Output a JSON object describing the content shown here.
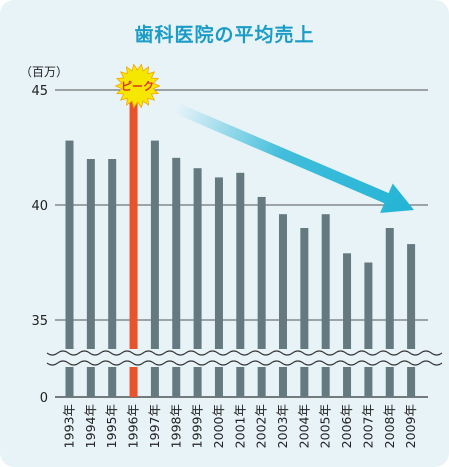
{
  "title": "歯科医院の平均売上",
  "chart_data": {
    "type": "bar",
    "title": "歯科医院の平均売上",
    "unit_label": "（百万）",
    "categories": [
      "1993年",
      "1994年",
      "1995年",
      "1996年",
      "1997年",
      "1998年",
      "1999年",
      "2000年",
      "2001年",
      "2002年",
      "2003年",
      "2004年",
      "2005年",
      "2006年",
      "2007年",
      "2008年",
      "2009年"
    ],
    "values": [
      42.8,
      42.0,
      42.0,
      45.0,
      42.8,
      42.05,
      41.6,
      41.2,
      41.4,
      40.35,
      39.6,
      39.0,
      39.6,
      37.9,
      37.5,
      39.0,
      38.3
    ],
    "highlight_index": 3,
    "highlight_label": "ピーク",
    "yticks": [
      0,
      35,
      40,
      45
    ],
    "ylim": [
      0,
      45
    ],
    "axis_break": true,
    "trend_arrow": "downward",
    "colors": {
      "bar": "#647980",
      "highlight": "#e9532b",
      "arrow": "#23b4d6",
      "title": "#1a9cc6",
      "background": "#e8f3f8",
      "burst": "#f6e700"
    }
  }
}
